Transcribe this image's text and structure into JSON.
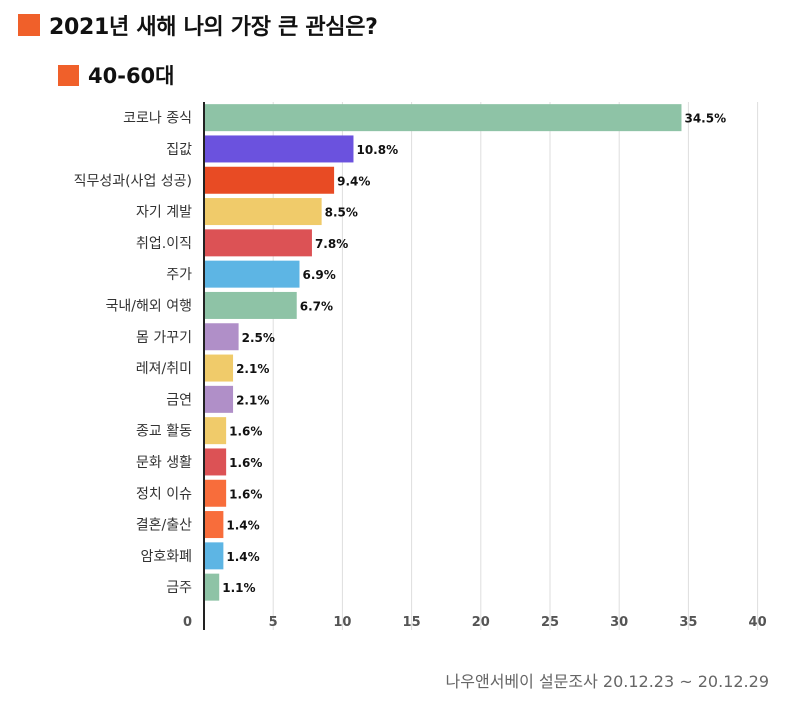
{
  "title": "2021년 새해 나의 가장 큰 관심은?",
  "subtitle": "40-60대",
  "source": "나우앤서베이 설문조사 20.12.23 ~ 20.12.29",
  "accent_color": "#f0602a",
  "chart_data": {
    "type": "bar",
    "orientation": "horizontal",
    "categories": [
      "코로나 종식",
      "집값",
      "직무성과(사업 성공)",
      "자기 계발",
      "취업.이직",
      "주가",
      "국내/해외 여행",
      "몸 가꾸기",
      "레져/취미",
      "금연",
      "종교 활동",
      "문화 생활",
      "정치 이슈",
      "결혼/출산",
      "암호화폐",
      "금주"
    ],
    "values": [
      34.5,
      10.8,
      9.4,
      8.5,
      7.8,
      6.9,
      6.7,
      2.5,
      2.1,
      2.1,
      1.6,
      1.6,
      1.6,
      1.4,
      1.4,
      1.1
    ],
    "value_labels": [
      "34.5%",
      "10.8%",
      "9.4%",
      "8.5%",
      "7.8%",
      "6.9%",
      "6.7%",
      "2.5%",
      "2.1%",
      "2.1%",
      "1.6%",
      "1.6%",
      "1.6%",
      "1.4%",
      "1.4%",
      "1.1%"
    ],
    "colors": [
      "#8ec3a6",
      "#6b52de",
      "#e84b24",
      "#f0cb6a",
      "#dc5255",
      "#5db5e4",
      "#8ec3a6",
      "#b08fc8",
      "#f0cb6a",
      "#b08fc8",
      "#f0cb6a",
      "#dc5255",
      "#f86d3b",
      "#f86d3b",
      "#5db5e4",
      "#8ec3a6"
    ],
    "xlim": [
      0,
      40
    ],
    "xticks": [
      "0",
      "5",
      "10",
      "15",
      "20",
      "25",
      "30",
      "35",
      "40"
    ],
    "xtick_values": [
      0,
      5,
      10,
      15,
      20,
      25,
      30,
      35,
      40
    ],
    "grid": true,
    "legend": "none"
  }
}
